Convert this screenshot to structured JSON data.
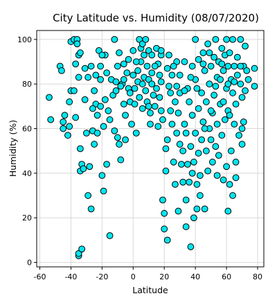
{
  "chart_data": {
    "type": "scatter",
    "title": "City Latitude vs. Humidity (08/07/2020)",
    "xlabel": "Latitude",
    "ylabel": "Humidity (%)",
    "xlim": [
      -62,
      84
    ],
    "ylim": [
      -2,
      104
    ],
    "xticks": [
      -60,
      -40,
      -20,
      0,
      20,
      40,
      60,
      80
    ],
    "yticks": [
      0,
      20,
      40,
      60,
      80,
      100
    ],
    "grid": true,
    "colors": {
      "marker_fill": "#00e5ee",
      "marker_edge": "#000000"
    },
    "points": [
      [
        -54,
        74
      ],
      [
        -53,
        64
      ],
      [
        -47,
        88
      ],
      [
        -46,
        86
      ],
      [
        -45,
        63
      ],
      [
        -45,
        60
      ],
      [
        -44,
        66
      ],
      [
        -42,
        57
      ],
      [
        -41,
        61
      ],
      [
        -40,
        77
      ],
      [
        -40,
        99
      ],
      [
        -38,
        77
      ],
      [
        -38,
        100
      ],
      [
        -37,
        89
      ],
      [
        -36,
        100
      ],
      [
        -36,
        98
      ],
      [
        -35,
        83
      ],
      [
        -35,
        93
      ],
      [
        -34,
        94
      ],
      [
        -35,
        3
      ],
      [
        -35,
        4
      ],
      [
        -33,
        6
      ],
      [
        -34,
        51
      ],
      [
        -33,
        44
      ],
      [
        -34,
        41
      ],
      [
        -32,
        42
      ],
      [
        -31,
        87
      ],
      [
        -29,
        83
      ],
      [
        -29,
        30
      ],
      [
        -28,
        43
      ],
      [
        -27,
        24
      ],
      [
        -26,
        59
      ],
      [
        -25,
        53
      ],
      [
        -25,
        77
      ],
      [
        -24,
        84
      ],
      [
        -24,
        71
      ],
      [
        -23,
        58
      ],
      [
        -22,
        95
      ],
      [
        -21,
        88
      ],
      [
        -21,
        82
      ],
      [
        -21,
        70
      ],
      [
        -20,
        39
      ],
      [
        -19,
        32
      ],
      [
        -19,
        61
      ],
      [
        -18,
        93
      ],
      [
        -17,
        85
      ],
      [
        -17,
        44
      ],
      [
        -15,
        12
      ],
      [
        -14,
        82
      ],
      [
        -13,
        75
      ],
      [
        -12,
        100
      ],
      [
        -11,
        81
      ],
      [
        -10,
        88
      ],
      [
        -10,
        56
      ],
      [
        -9,
        94
      ],
      [
        -9,
        53
      ],
      [
        -8,
        46
      ],
      [
        -7,
        80
      ],
      [
        -6,
        82
      ],
      [
        -6,
        71
      ],
      [
        -5,
        55
      ],
      [
        -4,
        85
      ],
      [
        -3,
        78
      ],
      [
        -3,
        91
      ],
      [
        -2,
        72
      ],
      [
        -1,
        62
      ],
      [
        0,
        95
      ],
      [
        0,
        84
      ],
      [
        1,
        78
      ],
      [
        2,
        58
      ],
      [
        3,
        86
      ],
      [
        3,
        81
      ],
      [
        4,
        100
      ],
      [
        4,
        74
      ],
      [
        5,
        96
      ],
      [
        5,
        90
      ],
      [
        6,
        69
      ],
      [
        6,
        98
      ],
      [
        7,
        83
      ],
      [
        8,
        77
      ],
      [
        8,
        100
      ],
      [
        9,
        88
      ],
      [
        9,
        72
      ],
      [
        10,
        95
      ],
      [
        10,
        82
      ],
      [
        11,
        67
      ],
      [
        11,
        62
      ],
      [
        12,
        93
      ],
      [
        12,
        85
      ],
      [
        13,
        75
      ],
      [
        14,
        70
      ],
      [
        15,
        96
      ],
      [
        15,
        78
      ],
      [
        16,
        89
      ],
      [
        16,
        61
      ],
      [
        17,
        84
      ],
      [
        17,
        74
      ],
      [
        18,
        93
      ],
      [
        18,
        68
      ],
      [
        19,
        64
      ],
      [
        19,
        28
      ],
      [
        20,
        22
      ],
      [
        20,
        15
      ],
      [
        21,
        51
      ],
      [
        21,
        41
      ],
      [
        22,
        10
      ],
      [
        22,
        87
      ],
      [
        23,
        93
      ],
      [
        24,
        76
      ],
      [
        24,
        68
      ],
      [
        25,
        62
      ],
      [
        25,
        84
      ],
      [
        26,
        45
      ],
      [
        27,
        72
      ],
      [
        27,
        35
      ],
      [
        28,
        90
      ],
      [
        28,
        58
      ],
      [
        29,
        67
      ],
      [
        29,
        23
      ],
      [
        30,
        76
      ],
      [
        30,
        84
      ],
      [
        31,
        44
      ],
      [
        32,
        36
      ],
      [
        32,
        50
      ],
      [
        33,
        62
      ],
      [
        33,
        90
      ],
      [
        34,
        16
      ],
      [
        34,
        28
      ],
      [
        35,
        78
      ],
      [
        35,
        44
      ],
      [
        36,
        36
      ],
      [
        36,
        72
      ],
      [
        37,
        52
      ],
      [
        37,
        7
      ],
      [
        38,
        88
      ],
      [
        38,
        66
      ],
      [
        39,
        45
      ],
      [
        39,
        20
      ],
      [
        40,
        82
      ],
      [
        40,
        100
      ],
      [
        40,
        58
      ],
      [
        41,
        35
      ],
      [
        41,
        24
      ],
      [
        42,
        69
      ],
      [
        42,
        91
      ],
      [
        43,
        39
      ],
      [
        43,
        30
      ],
      [
        44,
        76
      ],
      [
        44,
        55
      ],
      [
        45,
        94
      ],
      [
        45,
        63
      ],
      [
        46,
        24
      ],
      [
        46,
        86
      ],
      [
        47,
        50
      ],
      [
        47,
        72
      ],
      [
        48,
        41
      ],
      [
        48,
        98
      ],
      [
        49,
        60
      ],
      [
        49,
        80
      ],
      [
        50,
        88
      ],
      [
        50,
        55
      ],
      [
        51,
        45
      ],
      [
        51,
        67
      ],
      [
        52,
        92
      ],
      [
        52,
        75
      ],
      [
        53,
        52
      ],
      [
        53,
        100
      ],
      [
        54,
        83
      ],
      [
        54,
        62
      ],
      [
        55,
        48
      ],
      [
        55,
        90
      ],
      [
        56,
        71
      ],
      [
        56,
        82
      ],
      [
        57,
        96
      ],
      [
        57,
        57
      ],
      [
        58,
        86
      ],
      [
        58,
        37
      ],
      [
        59,
        64
      ],
      [
        59,
        93
      ],
      [
        60,
        78
      ],
      [
        60,
        43
      ],
      [
        60,
        100
      ],
      [
        61,
        23
      ],
      [
        61,
        68
      ],
      [
        61,
        88
      ],
      [
        62,
        35
      ],
      [
        62,
        94
      ],
      [
        63,
        50
      ],
      [
        63,
        82
      ],
      [
        64,
        30
      ],
      [
        64,
        76
      ],
      [
        64,
        100
      ],
      [
        65,
        62
      ],
      [
        65,
        88
      ],
      [
        66,
        45
      ],
      [
        66,
        71
      ],
      [
        67,
        84
      ],
      [
        67,
        92
      ],
      [
        68,
        57
      ],
      [
        69,
        80
      ],
      [
        69,
        100
      ],
      [
        70,
        74
      ],
      [
        70,
        53
      ],
      [
        71,
        88
      ],
      [
        71,
        63
      ],
      [
        72,
        97
      ],
      [
        72,
        77
      ],
      [
        73,
        86
      ],
      [
        74,
        82
      ],
      [
        78,
        87
      ],
      [
        78,
        79
      ],
      [
        -30,
        58
      ],
      [
        -26,
        69
      ],
      [
        -23,
        66
      ],
      [
        -18,
        73
      ],
      [
        -15,
        64
      ],
      [
        -12,
        59
      ],
      [
        -8,
        79
      ],
      [
        -6,
        89
      ],
      [
        -2,
        76
      ],
      [
        2,
        90
      ],
      [
        6,
        80
      ],
      [
        10,
        70
      ],
      [
        14,
        88
      ],
      [
        18,
        81
      ],
      [
        22,
        55
      ],
      [
        26,
        88
      ],
      [
        30,
        53
      ],
      [
        34,
        58
      ],
      [
        38,
        40
      ],
      [
        42,
        49
      ],
      [
        46,
        60
      ],
      [
        50,
        68
      ],
      [
        54,
        39
      ],
      [
        58,
        72
      ],
      [
        62,
        66
      ],
      [
        66,
        38
      ],
      [
        70,
        60
      ],
      [
        -41,
        72
      ],
      [
        -37,
        65
      ],
      [
        -31,
        73
      ],
      [
        -27,
        88
      ],
      [
        -20,
        93
      ],
      [
        -16,
        68
      ],
      [
        -11,
        77
      ],
      [
        -5,
        66
      ],
      [
        1,
        71
      ],
      [
        7,
        93
      ],
      [
        12,
        80
      ],
      [
        18,
        95
      ],
      [
        23,
        79
      ],
      [
        28,
        79
      ],
      [
        33,
        77
      ],
      [
        37,
        83
      ],
      [
        41,
        78
      ],
      [
        45,
        89
      ],
      [
        49,
        94
      ],
      [
        53,
        79
      ],
      [
        57,
        89
      ],
      [
        61,
        80
      ],
      [
        65,
        81
      ],
      [
        69,
        88
      ]
    ]
  }
}
